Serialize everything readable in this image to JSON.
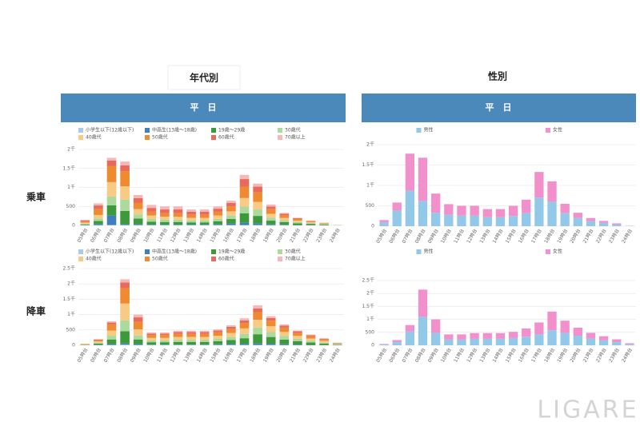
{
  "column_titles": [
    "年代別",
    "性別"
  ],
  "panel_headers": [
    "平　日",
    "平　日"
  ],
  "row_labels": [
    "乗車",
    "降車"
  ],
  "watermark": "LIGARE",
  "chart_data": [
    {
      "type": "bar",
      "stacked": true,
      "grid": true,
      "categories": [
        "05時台",
        "06時台",
        "07時台",
        "08時台",
        "09時台",
        "10時台",
        "11時台",
        "12時台",
        "13時台",
        "14時台",
        "15時台",
        "16時台",
        "17時台",
        "18時台",
        "19時台",
        "20時台",
        "21時台",
        "22時台",
        "23時台",
        "24時台"
      ],
      "ylim": [
        0,
        2000
      ],
      "yticks": [
        0,
        500,
        {
          "value": 1000,
          "label": "1千"
        },
        {
          "value": 1500,
          "label": "1.5千"
        },
        {
          "value": 2000,
          "label": "2千"
        }
      ],
      "series": [
        {
          "name": "小学生以下(12歳以下)",
          "color": "#a9cbe9",
          "values": [
            0,
            5,
            10,
            10,
            10,
            10,
            10,
            10,
            10,
            10,
            10,
            10,
            10,
            10,
            5,
            5,
            0,
            0,
            0,
            0
          ]
        },
        {
          "name": "中高生(13歳～18歳)",
          "color": "#3f7fc1",
          "values": [
            5,
            30,
            250,
            20,
            20,
            10,
            10,
            10,
            10,
            10,
            20,
            40,
            60,
            40,
            20,
            10,
            5,
            5,
            0,
            0
          ]
        },
        {
          "name": "19歳～29歳",
          "color": "#3d9a3b",
          "values": [
            20,
            80,
            270,
            350,
            150,
            80,
            70,
            70,
            60,
            60,
            80,
            120,
            250,
            200,
            100,
            70,
            50,
            35,
            20,
            2
          ]
        },
        {
          "name": "30歳代",
          "color": "#acd99c",
          "values": [
            20,
            70,
            230,
            300,
            110,
            70,
            60,
            60,
            50,
            50,
            60,
            90,
            180,
            170,
            80,
            50,
            30,
            20,
            10,
            2
          ]
        },
        {
          "name": "40歳代",
          "color": "#f8ca83",
          "values": [
            25,
            90,
            380,
            350,
            140,
            90,
            80,
            80,
            70,
            70,
            90,
            110,
            220,
            200,
            100,
            60,
            40,
            25,
            15,
            2
          ]
        },
        {
          "name": "50歳代",
          "color": "#f08a30",
          "values": [
            30,
            150,
            420,
            400,
            170,
            100,
            90,
            90,
            80,
            80,
            100,
            130,
            300,
            250,
            120,
            70,
            45,
            25,
            15,
            2
          ]
        },
        {
          "name": "60歳代",
          "color": "#e96a5c",
          "values": [
            30,
            100,
            150,
            150,
            120,
            100,
            100,
            100,
            80,
            80,
            80,
            90,
            200,
            150,
            70,
            40,
            20,
            10,
            5,
            1
          ]
        },
        {
          "name": "70歳以上",
          "color": "#f5b8b6",
          "values": [
            20,
            55,
            70,
            100,
            80,
            80,
            80,
            80,
            60,
            60,
            60,
            60,
            110,
            80,
            55,
            25,
            10,
            10,
            5,
            1
          ]
        }
      ]
    },
    {
      "type": "bar",
      "stacked": true,
      "grid": true,
      "categories": [
        "05時台",
        "06時台",
        "07時台",
        "08時台",
        "09時台",
        "10時台",
        "11時台",
        "12時台",
        "13時台",
        "14時台",
        "15時台",
        "16時台",
        "17時台",
        "18時台",
        "19時台",
        "20時台",
        "21時台",
        "22時台",
        "23時台",
        "24時台"
      ],
      "ylim": [
        0,
        2500
      ],
      "yticks": [
        0,
        500,
        {
          "value": 1000,
          "label": "1千"
        },
        {
          "value": 1500,
          "label": "1.5千"
        },
        {
          "value": 2000,
          "label": "2千"
        },
        {
          "value": 2500,
          "label": "2.5千"
        }
      ],
      "series": [
        {
          "name": "小学生以下(12歳以下)",
          "color": "#a9cbe9",
          "values": [
            0,
            5,
            10,
            20,
            10,
            10,
            10,
            10,
            10,
            10,
            10,
            10,
            10,
            10,
            10,
            5,
            5,
            0,
            0,
            0
          ]
        },
        {
          "name": "中高生(13歳～18歳)",
          "color": "#3f7fc1",
          "values": [
            0,
            10,
            30,
            40,
            30,
            10,
            10,
            10,
            10,
            10,
            20,
            30,
            40,
            50,
            40,
            30,
            20,
            10,
            5,
            2
          ]
        },
        {
          "name": "19歳～29歳",
          "color": "#3d9a3b",
          "values": [
            10,
            40,
            150,
            400,
            150,
            80,
            80,
            90,
            90,
            90,
            100,
            130,
            180,
            300,
            220,
            150,
            110,
            80,
            50,
            18
          ]
        },
        {
          "name": "30歳代",
          "color": "#acd99c",
          "values": [
            10,
            30,
            120,
            350,
            130,
            60,
            60,
            70,
            70,
            70,
            80,
            100,
            140,
            220,
            160,
            120,
            80,
            60,
            40,
            15
          ]
        },
        {
          "name": "40歳代",
          "color": "#f8ca83",
          "values": [
            10,
            40,
            170,
            550,
            200,
            80,
            80,
            90,
            90,
            90,
            100,
            130,
            180,
            250,
            190,
            130,
            90,
            70,
            50,
            15
          ]
        },
        {
          "name": "50歳代",
          "color": "#f08a30",
          "values": [
            10,
            45,
            200,
            500,
            250,
            90,
            90,
            100,
            100,
            100,
            110,
            130,
            170,
            250,
            180,
            140,
            100,
            70,
            45,
            15
          ]
        },
        {
          "name": "60歳代",
          "color": "#e96a5c",
          "values": [
            5,
            20,
            60,
            190,
            140,
            50,
            50,
            60,
            60,
            60,
            60,
            70,
            90,
            120,
            90,
            65,
            50,
            40,
            25,
            10
          ]
        },
        {
          "name": "70歳以上",
          "color": "#f5b8b6",
          "values": [
            5,
            10,
            40,
            100,
            90,
            40,
            40,
            40,
            40,
            40,
            40,
            50,
            70,
            100,
            60,
            40,
            25,
            20,
            15,
            5
          ]
        }
      ]
    },
    {
      "type": "bar",
      "stacked": true,
      "grid": true,
      "categories": [
        "05時台",
        "06時台",
        "07時台",
        "08時台",
        "09時台",
        "10時台",
        "11時台",
        "12時台",
        "13時台",
        "14時台",
        "15時台",
        "16時台",
        "17時台",
        "18時台",
        "19時台",
        "20時台",
        "21時台",
        "22時台",
        "23時台",
        "24時台"
      ],
      "ylim": [
        0,
        2000
      ],
      "yticks": [
        0,
        500,
        {
          "value": 1000,
          "label": "1千"
        },
        {
          "value": 1500,
          "label": "1.5千"
        },
        {
          "value": 2000,
          "label": "2千"
        }
      ],
      "series": [
        {
          "name": "男性",
          "color": "#92c9e9",
          "values": [
            90,
            380,
            870,
            620,
            330,
            280,
            260,
            260,
            220,
            220,
            250,
            320,
            700,
            600,
            320,
            200,
            120,
            80,
            40,
            5
          ]
        },
        {
          "name": "女性",
          "color": "#f290cb",
          "values": [
            60,
            200,
            910,
            1060,
            470,
            260,
            240,
            240,
            200,
            200,
            250,
            330,
            630,
            500,
            230,
            130,
            80,
            50,
            30,
            5
          ]
        }
      ]
    },
    {
      "type": "bar",
      "stacked": true,
      "grid": true,
      "categories": [
        "05時台",
        "06時台",
        "07時台",
        "08時台",
        "09時台",
        "10時台",
        "11時台",
        "12時台",
        "13時台",
        "14時台",
        "15時台",
        "16時台",
        "17時台",
        "18時台",
        "19時台",
        "20時台",
        "21時台",
        "22時台",
        "23時台",
        "24時台"
      ],
      "ylim": [
        0,
        2500
      ],
      "yticks": [
        0,
        500,
        {
          "value": 1000,
          "label": "1千"
        },
        {
          "value": 1500,
          "label": "1.5千"
        },
        {
          "value": 2000,
          "label": "2千"
        },
        {
          "value": 2500,
          "label": "2.5千"
        }
      ],
      "series": [
        {
          "name": "男性",
          "color": "#92c9e9",
          "values": [
            30,
            120,
            530,
            1100,
            480,
            220,
            220,
            250,
            250,
            250,
            280,
            330,
            420,
            580,
            480,
            370,
            260,
            190,
            120,
            40
          ]
        },
        {
          "name": "女性",
          "color": "#f290cb",
          "values": [
            20,
            80,
            250,
            1050,
            520,
            200,
            200,
            220,
            220,
            220,
            240,
            320,
            460,
            720,
            470,
            310,
            220,
            160,
            110,
            40
          ]
        }
      ]
    }
  ]
}
